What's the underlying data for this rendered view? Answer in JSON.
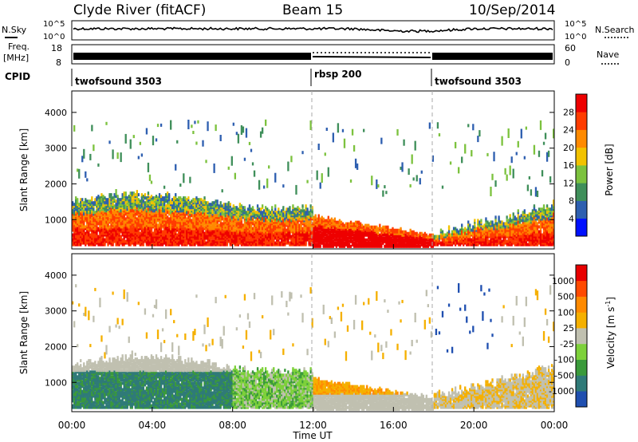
{
  "header": {
    "station": "Clyde River (fitACF)",
    "beam": "Beam 15",
    "date": "10/Sep/2014"
  },
  "nsky_panel": {
    "left_label": "N.Sky",
    "right_label": "N.Search",
    "left_ticks": [
      "10^5",
      "10^0"
    ],
    "right_ticks": [
      "10^5",
      "10^0"
    ]
  },
  "freq_panel": {
    "label_line1": "Freq.",
    "label_line2": "[MHz]",
    "left_ticks": [
      "18",
      "8"
    ],
    "right_ticks": [
      "60",
      "0"
    ],
    "right_label": "Nave"
  },
  "cpid": {
    "label": "CPID",
    "segments": [
      {
        "name": "twofsound 3503",
        "start_hour": 0,
        "end_hour": 12
      },
      {
        "name": "rbsp 200",
        "start_hour": 12,
        "end_hour": 18
      },
      {
        "name": "twofsound 3503",
        "start_hour": 18,
        "end_hour": 24
      }
    ]
  },
  "chart_data": [
    {
      "type": "heatmap",
      "name": "power",
      "ylabel": "Slant Range [km]",
      "ylim": [
        180,
        4600
      ],
      "yticks": [
        1000,
        2000,
        3000,
        4000
      ],
      "xlim": [
        0,
        24
      ],
      "colorbar": {
        "label": "Power [dB]",
        "ticks": [
          "4",
          "8",
          "12",
          "16",
          "20",
          "24",
          "28"
        ],
        "colors": [
          "#0010ff",
          "#2e5fb0",
          "#3f8f5a",
          "#7cc23e",
          "#f2c200",
          "#ff8a00",
          "#ff3c00",
          "#ee0000"
        ]
      },
      "main_band": {
        "lower_km": [
          700,
          750
        ],
        "upper_km": [
          1550,
          1500
        ]
      }
    },
    {
      "type": "heatmap",
      "name": "velocity",
      "ylabel": "Slant Range [km]",
      "xlabel": "Time UT",
      "ylim": [
        180,
        4600
      ],
      "yticks": [
        1000,
        2000,
        3000,
        4000
      ],
      "xlim": [
        0,
        24
      ],
      "xticks": [
        "00:00",
        "04:00",
        "08:00",
        "12:00",
        "16:00",
        "20:00",
        "00:00"
      ],
      "colorbar": {
        "label": "Velocity [m s",
        "label_sup": "-1",
        "label_end": "]",
        "ticks": [
          "1000",
          "500",
          "100",
          "25",
          "-25",
          "-100",
          "-500",
          "-1000"
        ],
        "colors": [
          "#1f4fb0",
          "#2f7a78",
          "#3a9a3a",
          "#7dd13a",
          "#c0c0b0",
          "#f5b000",
          "#ff8a00",
          "#ff4a00",
          "#e80000"
        ]
      }
    }
  ]
}
